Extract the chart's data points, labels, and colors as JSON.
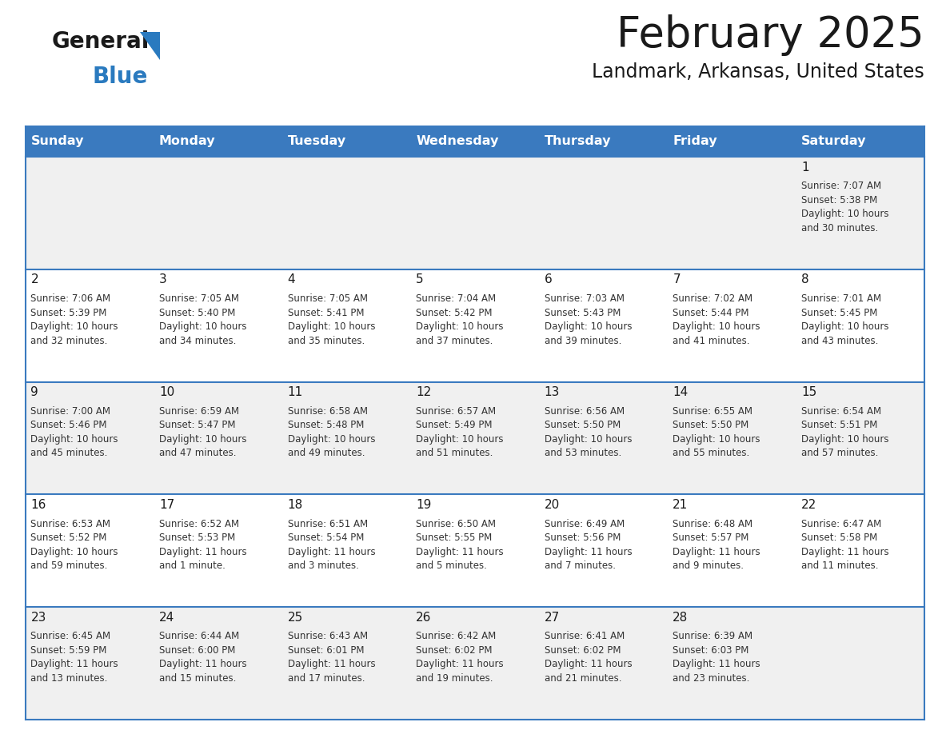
{
  "title": "February 2025",
  "subtitle": "Landmark, Arkansas, United States",
  "header_color": "#3a7abf",
  "header_text_color": "#ffffff",
  "cell_bg_row0": "#f0f0f0",
  "cell_bg_row1": "#ffffff",
  "cell_bg_row2": "#f0f0f0",
  "cell_bg_row3": "#ffffff",
  "cell_bg_row4": "#f0f0f0",
  "day_number_color": "#1a1a1a",
  "info_text_color": "#333333",
  "days_of_week": [
    "Sunday",
    "Monday",
    "Tuesday",
    "Wednesday",
    "Thursday",
    "Friday",
    "Saturday"
  ],
  "calendar_data": [
    [
      {
        "day": null,
        "info": null
      },
      {
        "day": null,
        "info": null
      },
      {
        "day": null,
        "info": null
      },
      {
        "day": null,
        "info": null
      },
      {
        "day": null,
        "info": null
      },
      {
        "day": null,
        "info": null
      },
      {
        "day": 1,
        "info": "Sunrise: 7:07 AM\nSunset: 5:38 PM\nDaylight: 10 hours\nand 30 minutes."
      }
    ],
    [
      {
        "day": 2,
        "info": "Sunrise: 7:06 AM\nSunset: 5:39 PM\nDaylight: 10 hours\nand 32 minutes."
      },
      {
        "day": 3,
        "info": "Sunrise: 7:05 AM\nSunset: 5:40 PM\nDaylight: 10 hours\nand 34 minutes."
      },
      {
        "day": 4,
        "info": "Sunrise: 7:05 AM\nSunset: 5:41 PM\nDaylight: 10 hours\nand 35 minutes."
      },
      {
        "day": 5,
        "info": "Sunrise: 7:04 AM\nSunset: 5:42 PM\nDaylight: 10 hours\nand 37 minutes."
      },
      {
        "day": 6,
        "info": "Sunrise: 7:03 AM\nSunset: 5:43 PM\nDaylight: 10 hours\nand 39 minutes."
      },
      {
        "day": 7,
        "info": "Sunrise: 7:02 AM\nSunset: 5:44 PM\nDaylight: 10 hours\nand 41 minutes."
      },
      {
        "day": 8,
        "info": "Sunrise: 7:01 AM\nSunset: 5:45 PM\nDaylight: 10 hours\nand 43 minutes."
      }
    ],
    [
      {
        "day": 9,
        "info": "Sunrise: 7:00 AM\nSunset: 5:46 PM\nDaylight: 10 hours\nand 45 minutes."
      },
      {
        "day": 10,
        "info": "Sunrise: 6:59 AM\nSunset: 5:47 PM\nDaylight: 10 hours\nand 47 minutes."
      },
      {
        "day": 11,
        "info": "Sunrise: 6:58 AM\nSunset: 5:48 PM\nDaylight: 10 hours\nand 49 minutes."
      },
      {
        "day": 12,
        "info": "Sunrise: 6:57 AM\nSunset: 5:49 PM\nDaylight: 10 hours\nand 51 minutes."
      },
      {
        "day": 13,
        "info": "Sunrise: 6:56 AM\nSunset: 5:50 PM\nDaylight: 10 hours\nand 53 minutes."
      },
      {
        "day": 14,
        "info": "Sunrise: 6:55 AM\nSunset: 5:50 PM\nDaylight: 10 hours\nand 55 minutes."
      },
      {
        "day": 15,
        "info": "Sunrise: 6:54 AM\nSunset: 5:51 PM\nDaylight: 10 hours\nand 57 minutes."
      }
    ],
    [
      {
        "day": 16,
        "info": "Sunrise: 6:53 AM\nSunset: 5:52 PM\nDaylight: 10 hours\nand 59 minutes."
      },
      {
        "day": 17,
        "info": "Sunrise: 6:52 AM\nSunset: 5:53 PM\nDaylight: 11 hours\nand 1 minute."
      },
      {
        "day": 18,
        "info": "Sunrise: 6:51 AM\nSunset: 5:54 PM\nDaylight: 11 hours\nand 3 minutes."
      },
      {
        "day": 19,
        "info": "Sunrise: 6:50 AM\nSunset: 5:55 PM\nDaylight: 11 hours\nand 5 minutes."
      },
      {
        "day": 20,
        "info": "Sunrise: 6:49 AM\nSunset: 5:56 PM\nDaylight: 11 hours\nand 7 minutes."
      },
      {
        "day": 21,
        "info": "Sunrise: 6:48 AM\nSunset: 5:57 PM\nDaylight: 11 hours\nand 9 minutes."
      },
      {
        "day": 22,
        "info": "Sunrise: 6:47 AM\nSunset: 5:58 PM\nDaylight: 11 hours\nand 11 minutes."
      }
    ],
    [
      {
        "day": 23,
        "info": "Sunrise: 6:45 AM\nSunset: 5:59 PM\nDaylight: 11 hours\nand 13 minutes."
      },
      {
        "day": 24,
        "info": "Sunrise: 6:44 AM\nSunset: 6:00 PM\nDaylight: 11 hours\nand 15 minutes."
      },
      {
        "day": 25,
        "info": "Sunrise: 6:43 AM\nSunset: 6:01 PM\nDaylight: 11 hours\nand 17 minutes."
      },
      {
        "day": 26,
        "info": "Sunrise: 6:42 AM\nSunset: 6:02 PM\nDaylight: 11 hours\nand 19 minutes."
      },
      {
        "day": 27,
        "info": "Sunrise: 6:41 AM\nSunset: 6:02 PM\nDaylight: 11 hours\nand 21 minutes."
      },
      {
        "day": 28,
        "info": "Sunrise: 6:39 AM\nSunset: 6:03 PM\nDaylight: 11 hours\nand 23 minutes."
      },
      {
        "day": null,
        "info": null
      }
    ]
  ],
  "border_color": "#3a7abf",
  "line_color": "#3a7abf",
  "fig_width": 11.88,
  "fig_height": 9.18,
  "dpi": 100
}
